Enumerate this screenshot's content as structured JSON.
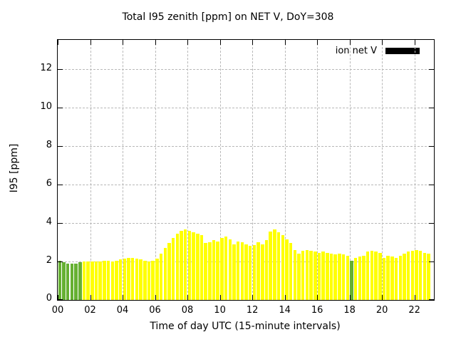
{
  "colors": {
    "bar_yellow": "#ffff00",
    "bar_green": "#66b032",
    "legend_swatch": "#000000",
    "grid": "#b8b8b8",
    "background": "#ffffff"
  },
  "chart_data": {
    "type": "bar",
    "title": "Total I95 zenith [ppm] on NET V, DoY=308",
    "xlabel": "Time of day UTC (15-minute intervals)",
    "ylabel": "I95 [ppm]",
    "legend_entries": [
      "ion net V"
    ],
    "legend_position": "top-right-inside",
    "grid": true,
    "xlim": [
      0,
      23.2
    ],
    "ylim": [
      0,
      13.5
    ],
    "x_ticks": [
      "00",
      "02",
      "04",
      "06",
      "08",
      "10",
      "12",
      "14",
      "16",
      "18",
      "20",
      "22"
    ],
    "y_ticks": [
      0,
      2,
      4,
      6,
      8,
      10,
      12
    ],
    "start_time": "00:00",
    "interval_minutes": 15,
    "values": [
      2.05,
      1.95,
      1.9,
      1.9,
      1.9,
      1.95,
      2.0,
      2.0,
      2.0,
      2.0,
      2.0,
      2.05,
      2.05,
      2.0,
      2.05,
      2.1,
      2.15,
      2.2,
      2.2,
      2.15,
      2.1,
      2.05,
      2.0,
      2.05,
      2.15,
      2.4,
      2.7,
      2.95,
      3.2,
      3.45,
      3.6,
      3.65,
      3.6,
      3.5,
      3.45,
      3.35,
      2.95,
      3.0,
      3.1,
      3.05,
      3.2,
      3.3,
      3.15,
      2.9,
      3.05,
      3.0,
      2.9,
      2.8,
      2.85,
      3.0,
      2.9,
      3.1,
      3.55,
      3.65,
      3.5,
      3.35,
      3.15,
      2.95,
      2.6,
      2.4,
      2.55,
      2.6,
      2.55,
      2.5,
      2.45,
      2.5,
      2.45,
      2.4,
      2.35,
      2.4,
      2.35,
      2.3,
      2.05,
      2.2,
      2.25,
      2.3,
      2.5,
      2.55,
      2.5,
      2.45,
      2.2,
      2.3,
      2.25,
      2.2,
      2.3,
      2.4,
      2.5,
      2.55,
      2.6,
      2.55,
      2.45,
      2.4
    ],
    "green_indices": [
      0,
      1,
      2,
      3,
      4,
      5,
      72
    ],
    "bar_color_default": "yellow",
    "bar_color_special": "green"
  }
}
